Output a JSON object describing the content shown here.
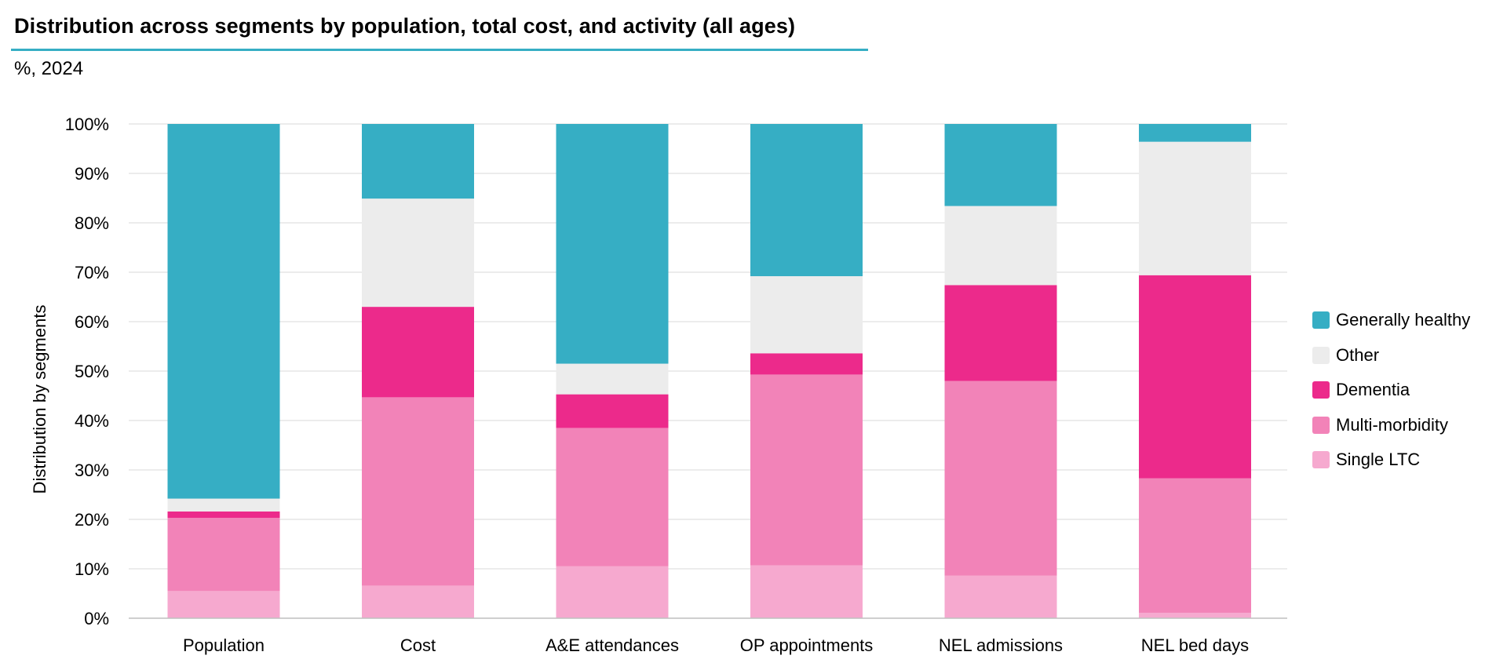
{
  "chart_data": {
    "type": "bar",
    "stacked": true,
    "title": "Distribution across segments by population, total cost, and activity (all ages)",
    "subtitle": "%, 2024",
    "xlabel": "",
    "ylabel": "Distribution  by segments",
    "ylim": [
      0,
      100
    ],
    "yticks": [
      0,
      10,
      20,
      30,
      40,
      50,
      60,
      70,
      80,
      90,
      100
    ],
    "ytick_labels": [
      "0%",
      "10%",
      "20%",
      "30%",
      "40%",
      "50%",
      "60%",
      "70%",
      "80%",
      "90%",
      "100%"
    ],
    "grid": true,
    "legend_position": "right",
    "categories": [
      "Population",
      "Cost",
      "A&E attendances",
      "OP appointments",
      "NEL admissions",
      "NEL bed days"
    ],
    "series": [
      {
        "name": "Single LTC",
        "color": "#f6a9cf",
        "values": [
          5.5,
          6.6,
          10.5,
          10.7,
          8.6,
          1.1
        ]
      },
      {
        "name": "Multi-morbidity",
        "color": "#f283b8",
        "values": [
          14.8,
          38.1,
          28.0,
          38.6,
          39.4,
          27.2
        ]
      },
      {
        "name": "Dementia",
        "color": "#ec2a8b",
        "values": [
          1.3,
          18.3,
          6.8,
          4.3,
          19.4,
          41.1
        ]
      },
      {
        "name": "Other",
        "color": "#ececec",
        "values": [
          2.6,
          21.9,
          6.2,
          15.6,
          16.0,
          27.0
        ]
      },
      {
        "name": "Generally healthy",
        "color": "#36aec4",
        "values": [
          75.8,
          15.1,
          48.5,
          30.8,
          16.6,
          3.6
        ]
      }
    ]
  },
  "colors": {
    "title_rule": "#36aec4",
    "grid": "#d9d9d9",
    "axis": "#bfbfbf",
    "text": "#000000"
  }
}
